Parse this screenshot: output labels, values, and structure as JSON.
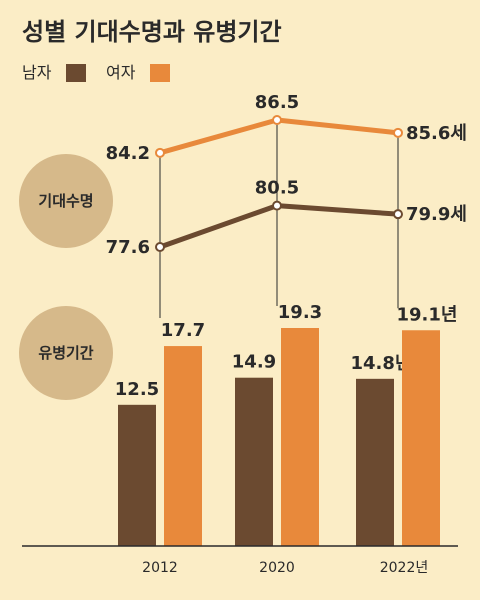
{
  "title": "성별 기대수명과 유병기간",
  "legend": [
    {
      "label": "남자",
      "color": "#6b4a30"
    },
    {
      "label": "여자",
      "color": "#e8893b"
    }
  ],
  "badges": {
    "life": "기대수명",
    "sick": "유병기간"
  },
  "colors": {
    "male": "#6b4a30",
    "female": "#e8893b",
    "badge": "#d6b98a",
    "axis": "#2a2a2a"
  },
  "chart_data": [
    {
      "type": "line",
      "categories": [
        "2012",
        "2020",
        "2022년"
      ],
      "series": [
        {
          "name": "여자",
          "values": [
            84.2,
            86.5,
            85.6
          ],
          "labels": [
            "84.2",
            "86.5",
            "85.6세"
          ]
        },
        {
          "name": "남자",
          "values": [
            77.6,
            80.5,
            79.9
          ],
          "labels": [
            "77.6",
            "80.5",
            "79.9세"
          ]
        }
      ],
      "ylim": [
        75,
        88
      ]
    },
    {
      "type": "bar",
      "categories": [
        "2012",
        "2020",
        "2022년"
      ],
      "series": [
        {
          "name": "남자",
          "values": [
            12.5,
            14.9,
            14.8
          ],
          "labels": [
            "12.5",
            "14.9",
            "14.8년"
          ]
        },
        {
          "name": "여자",
          "values": [
            17.7,
            19.3,
            19.1
          ],
          "labels": [
            "17.7",
            "19.3",
            "19.1년"
          ]
        }
      ],
      "ylim": [
        0,
        20
      ]
    }
  ]
}
